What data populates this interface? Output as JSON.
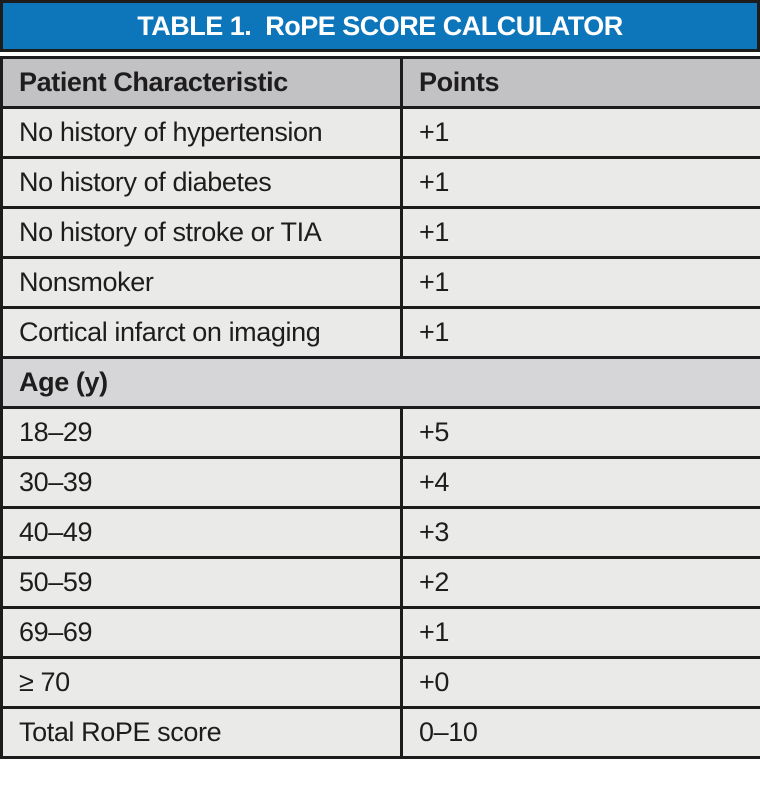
{
  "title": "TABLE 1.  RoPE SCORE CALCULATOR",
  "columns": {
    "characteristic": "Patient Characteristic",
    "points": "Points"
  },
  "rows": [
    {
      "label": "No history of hypertension",
      "points": "+1"
    },
    {
      "label": "No history of diabetes",
      "points": "+1"
    },
    {
      "label": "No history of stroke or TIA",
      "points": "+1"
    },
    {
      "label": "Nonsmoker",
      "points": "+1"
    },
    {
      "label": "Cortical infarct on imaging",
      "points": "+1"
    }
  ],
  "section": "Age (y)",
  "age_rows": [
    {
      "label": "18–29",
      "points": "+5"
    },
    {
      "label": "30–39",
      "points": "+4"
    },
    {
      "label": "40–49",
      "points": "+3"
    },
    {
      "label": "50–59",
      "points": "+2"
    },
    {
      "label": "69–69",
      "points": "+1"
    },
    {
      "label": "≥ 70",
      "points": "+0"
    }
  ],
  "total": {
    "label": "Total RoPE score",
    "points": "0–10"
  },
  "colors": {
    "title_bg": "#0d76bb",
    "title_text": "#ffffff",
    "header_bg": "#c2c2c4",
    "section_bg": "#d6d6d8",
    "row_bg": "#eaebe8",
    "border": "#1c1c1c",
    "text": "#1e1c1d"
  }
}
